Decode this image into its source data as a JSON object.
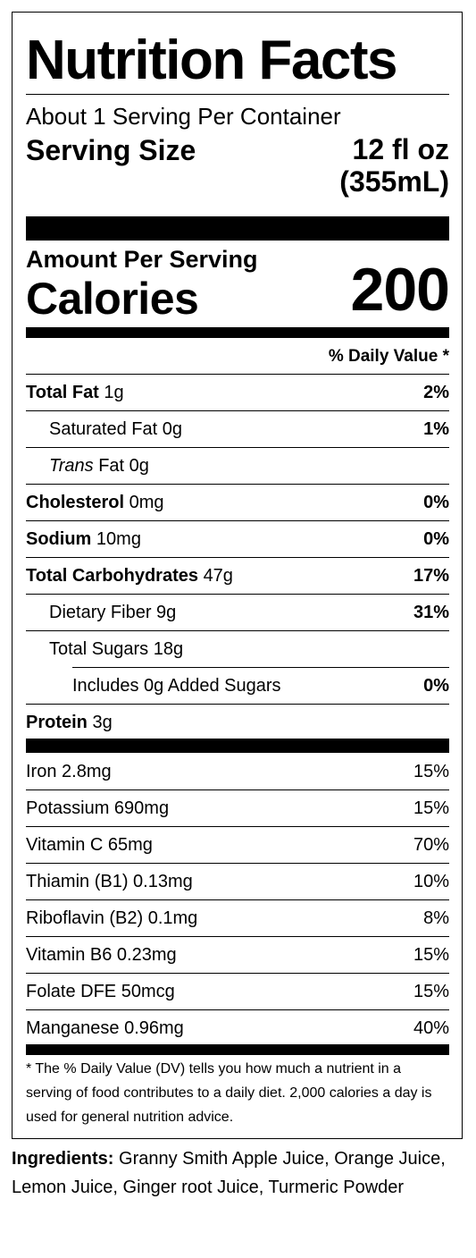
{
  "header": {
    "title": "Nutrition Facts",
    "servings_per_container": "About 1 Serving Per Container",
    "serving_size_label": "Serving Size",
    "serving_size_value_1": "12 fl oz",
    "serving_size_value_2": "(355mL)"
  },
  "calories": {
    "amount_label": "Amount Per Serving",
    "label": "Calories",
    "value": "200"
  },
  "dv_header": "% Daily Value *",
  "nutrients": [
    {
      "name": "Total Fat",
      "amount": "1g",
      "dv": "2%"
    },
    {
      "name": "Saturated Fat",
      "amount": "0g",
      "dv": "1%"
    },
    {
      "name": "Trans",
      "suffix": "Fat",
      "amount": "0g",
      "dv": ""
    },
    {
      "name": "Cholesterol",
      "amount": "0mg",
      "dv": "0%"
    },
    {
      "name": "Sodium",
      "amount": "10mg",
      "dv": "0%"
    },
    {
      "name": "Total Carbohydrates",
      "amount": "47g",
      "dv": "17%"
    },
    {
      "name": "Dietary Fiber",
      "amount": "9g",
      "dv": "31%"
    },
    {
      "name": "Total Sugars",
      "amount": "18g",
      "dv": ""
    },
    {
      "name": "Includes 0g Added Sugars",
      "amount": "",
      "dv": "0%"
    },
    {
      "name": "Protein",
      "amount": "3g",
      "dv": ""
    }
  ],
  "vitamins": [
    {
      "name": "Iron 2.8mg",
      "dv": "15%"
    },
    {
      "name": "Potassium 690mg",
      "dv": "15%"
    },
    {
      "name": "Vitamin C 65mg",
      "dv": "70%"
    },
    {
      "name": "Thiamin (B1) 0.13mg",
      "dv": "10%"
    },
    {
      "name": "Riboflavin (B2) 0.1mg",
      "dv": "8%"
    },
    {
      "name": "Vitamin B6 0.23mg",
      "dv": "15%"
    },
    {
      "name": "Folate DFE 50mcg",
      "dv": "15%"
    },
    {
      "name": "Manganese 0.96mg",
      "dv": "40%"
    }
  ],
  "footnote": "* The % Daily Value (DV) tells you how much a nutrient in a serving of food contributes to a daily diet. 2,000 calories a day is used for general nutrition advice.",
  "ingredients": {
    "label": "Ingredients:",
    "text": "Granny Smith Apple Juice, Orange Juice, Lemon Juice, Ginger root Juice, Turmeric Powder"
  }
}
